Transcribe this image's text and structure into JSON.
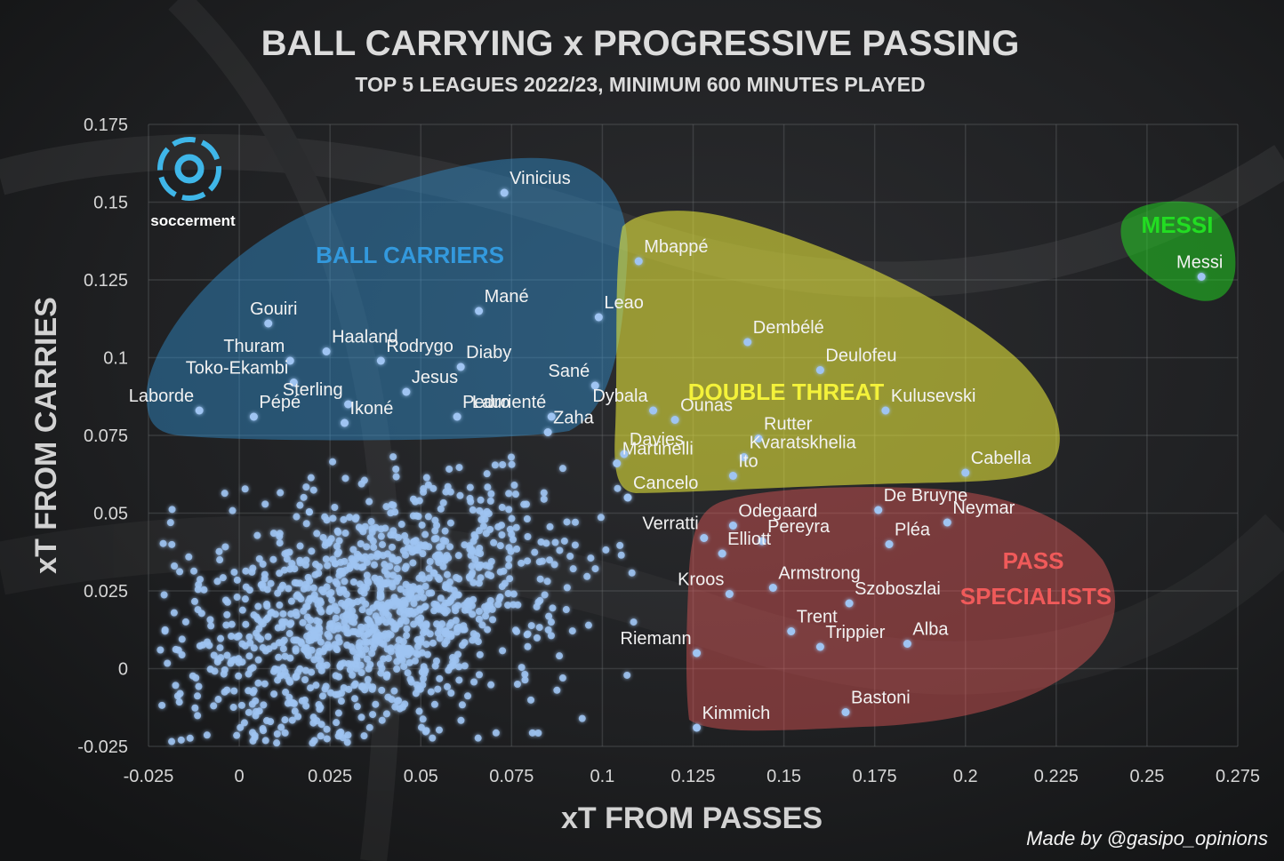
{
  "chart_data": {
    "type": "scatter",
    "title": "BALL CARRYING x PROGRESSIVE PASSING",
    "subtitle": "TOP 5 LEAGUES 2022/23, MINIMUM 600 MINUTES PLAYED",
    "xlabel": "xT FROM PASSES",
    "ylabel": "xT FROM CARRIES",
    "xlim": [
      -0.025,
      0.275
    ],
    "ylim": [
      -0.025,
      0.175
    ],
    "xticks": [
      "-0.025",
      "0",
      "0.025",
      "0.05",
      "0.075",
      "0.1",
      "0.125",
      "0.15",
      "0.175",
      "0.2",
      "0.225",
      "0.25",
      "0.275"
    ],
    "yticks": [
      "0.175",
      "0.15",
      "0.125",
      "0.1",
      "0.075",
      "0.05",
      "0.025",
      "0",
      "-0.025"
    ],
    "grid": true,
    "point_color": "#9fc4f2",
    "groups": [
      {
        "name": "BALL CARRIERS",
        "color": "#3399dd"
      },
      {
        "name": "DOUBLE THREAT",
        "color": "#f2f23a"
      },
      {
        "name": "PASS SPECIALISTS",
        "color": "#f05a5a"
      },
      {
        "name": "MESSI",
        "color": "#22dd22"
      }
    ],
    "labeled_players": [
      {
        "name": "Vinicius",
        "x": 0.073,
        "y": 0.153
      },
      {
        "name": "Mbappé",
        "x": 0.11,
        "y": 0.131
      },
      {
        "name": "Messi",
        "x": 0.265,
        "y": 0.126
      },
      {
        "name": "Gouiri",
        "x": 0.008,
        "y": 0.111
      },
      {
        "name": "Mané",
        "x": 0.066,
        "y": 0.115
      },
      {
        "name": "Leao",
        "x": 0.099,
        "y": 0.113
      },
      {
        "name": "Thuram",
        "x": 0.014,
        "y": 0.099
      },
      {
        "name": "Haaland",
        "x": 0.024,
        "y": 0.102
      },
      {
        "name": "Rodrygo",
        "x": 0.039,
        "y": 0.099
      },
      {
        "name": "Dembélé",
        "x": 0.14,
        "y": 0.105
      },
      {
        "name": "Diaby",
        "x": 0.061,
        "y": 0.097
      },
      {
        "name": "Deulofeu",
        "x": 0.16,
        "y": 0.096
      },
      {
        "name": "Toko-Ekambi",
        "x": 0.015,
        "y": 0.092
      },
      {
        "name": "Jesus",
        "x": 0.046,
        "y": 0.089
      },
      {
        "name": "Sané",
        "x": 0.098,
        "y": 0.091
      },
      {
        "name": "Sterling",
        "x": 0.03,
        "y": 0.085
      },
      {
        "name": "Dybala",
        "x": 0.114,
        "y": 0.083
      },
      {
        "name": "Laborde",
        "x": -0.011,
        "y": 0.083
      },
      {
        "name": "Pedro",
        "x": 0.06,
        "y": 0.081
      },
      {
        "name": "Laurienté",
        "x": 0.086,
        "y": 0.081
      },
      {
        "name": "Ounas",
        "x": 0.12,
        "y": 0.08
      },
      {
        "name": "Kulusevski",
        "x": 0.178,
        "y": 0.083
      },
      {
        "name": "Pépé",
        "x": 0.004,
        "y": 0.081
      },
      {
        "name": "Ikoné",
        "x": 0.029,
        "y": 0.079
      },
      {
        "name": "Zaha",
        "x": 0.085,
        "y": 0.076
      },
      {
        "name": "Rutter",
        "x": 0.143,
        "y": 0.074
      },
      {
        "name": "Davies",
        "x": 0.106,
        "y": 0.069
      },
      {
        "name": "Kvaratskhelia",
        "x": 0.139,
        "y": 0.068
      },
      {
        "name": "Cabella",
        "x": 0.2,
        "y": 0.063
      },
      {
        "name": "Martinelli",
        "x": 0.104,
        "y": 0.066
      },
      {
        "name": "Ito",
        "x": 0.136,
        "y": 0.062
      },
      {
        "name": "Cancelo",
        "x": 0.107,
        "y": 0.055
      },
      {
        "name": "De Bruyne",
        "x": 0.176,
        "y": 0.051
      },
      {
        "name": "Neymar",
        "x": 0.195,
        "y": 0.047
      },
      {
        "name": "Odegaard",
        "x": 0.136,
        "y": 0.046
      },
      {
        "name": "Verratti",
        "x": 0.128,
        "y": 0.042
      },
      {
        "name": "Pereyra",
        "x": 0.144,
        "y": 0.041
      },
      {
        "name": "Pléa",
        "x": 0.179,
        "y": 0.04
      },
      {
        "name": "Elliott",
        "x": 0.133,
        "y": 0.037
      },
      {
        "name": "Armstrong",
        "x": 0.147,
        "y": 0.026
      },
      {
        "name": "Kroos",
        "x": 0.135,
        "y": 0.024
      },
      {
        "name": "Szoboszlai",
        "x": 0.168,
        "y": 0.021
      },
      {
        "name": "Trent",
        "x": 0.152,
        "y": 0.012
      },
      {
        "name": "Trippier",
        "x": 0.16,
        "y": 0.007
      },
      {
        "name": "Alba",
        "x": 0.184,
        "y": 0.008
      },
      {
        "name": "Riemann",
        "x": 0.126,
        "y": 0.005
      },
      {
        "name": "Bastoni",
        "x": 0.167,
        "y": -0.014
      },
      {
        "name": "Kimmich",
        "x": 0.126,
        "y": -0.019
      }
    ]
  },
  "credit": "Made by @gasipo_opinions",
  "logo": {
    "icon": "soccerment-ball-icon",
    "text": "soccerment"
  }
}
